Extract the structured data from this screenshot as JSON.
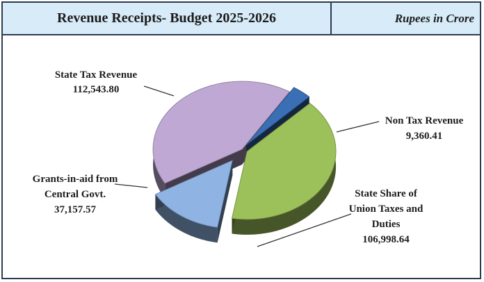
{
  "header": {
    "title": "Revenue Receipts- Budget 2025-2026",
    "unit": "Rupees in Crore"
  },
  "chart_data": {
    "type": "pie",
    "title": "Revenue Receipts- Budget 2025-2026",
    "unit": "Rupees in Crore",
    "slices": [
      {
        "label": "State Tax Revenue",
        "value": 112543.8,
        "value_label": "112,543.80",
        "color": "#bfa8d4"
      },
      {
        "label": "Non Tax Revenue",
        "value": 9360.41,
        "value_label": "9,360.41",
        "color": "#3b6fb5"
      },
      {
        "label": "State Share of Union Taxes and Duties",
        "value": 106998.64,
        "value_label": "106,998.64",
        "color": "#9cc05a"
      },
      {
        "label": "Grants-in-aid from Central Govt.",
        "value": 37157.57,
        "value_label": "37,157.57",
        "color": "#8fb3e3"
      }
    ]
  },
  "labels": {
    "state_tax": [
      "State Tax Revenue",
      "112,543.80"
    ],
    "non_tax": [
      "Non Tax Revenue",
      "9,360.41"
    ],
    "union_share": [
      "State Share of",
      "Union Taxes and",
      "Duties",
      "106,998.64"
    ],
    "grants": [
      "Grants-in-aid from",
      "Central Govt.",
      "37,157.57"
    ]
  }
}
